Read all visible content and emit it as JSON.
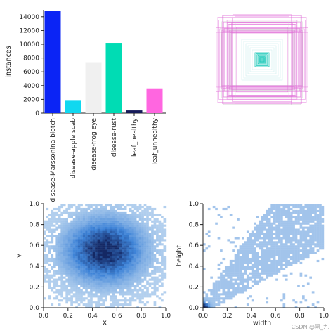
{
  "chart_data": [
    {
      "type": "bar",
      "categories": [
        "disease-Marssonina blotch",
        "disease-apple scab",
        "disease-frog eye",
        "disease-rust",
        "leaf_healthy",
        "leaf_unhealthy"
      ],
      "values": [
        14800,
        1800,
        7400,
        10200,
        400,
        3600
      ],
      "colors": [
        "#0b24f5",
        "#10d8f0",
        "#f0f0f0",
        "#00dcb4",
        "#161b5a",
        "#ff66e0"
      ],
      "ylabel": "instances",
      "yticks": [
        "0",
        "2000",
        "4000",
        "6000",
        "8000",
        "10000",
        "12000",
        "14000"
      ],
      "ylim": [
        0,
        15000
      ]
    },
    {
      "type": "scatter",
      "description_role": "bounding-box overlay",
      "boxes_color": "#e070d8",
      "center_color": "#18c8b8"
    },
    {
      "type": "heatmap",
      "xlabel": "x",
      "ylabel": "y",
      "xticks": [
        "0.0",
        "0.2",
        "0.4",
        "0.6",
        "0.8",
        "1.0"
      ],
      "yticks": [
        "0.0",
        "0.2",
        "0.4",
        "0.6",
        "0.8",
        "1.0"
      ],
      "xlim": [
        0,
        1
      ],
      "ylim": [
        0,
        1
      ],
      "center": [
        0.5,
        0.55
      ]
    },
    {
      "type": "heatmap",
      "xlabel": "width",
      "ylabel": "height",
      "xticks": [
        "0.0",
        "0.2",
        "0.4",
        "0.6",
        "0.8",
        "1.0"
      ],
      "yticks": [
        "0.0",
        "0.2",
        "0.4",
        "0.6",
        "0.8",
        "1.0"
      ],
      "xlim": [
        0,
        1
      ],
      "ylim": [
        0,
        1
      ]
    }
  ],
  "watermark": "CSDN @阿_九"
}
